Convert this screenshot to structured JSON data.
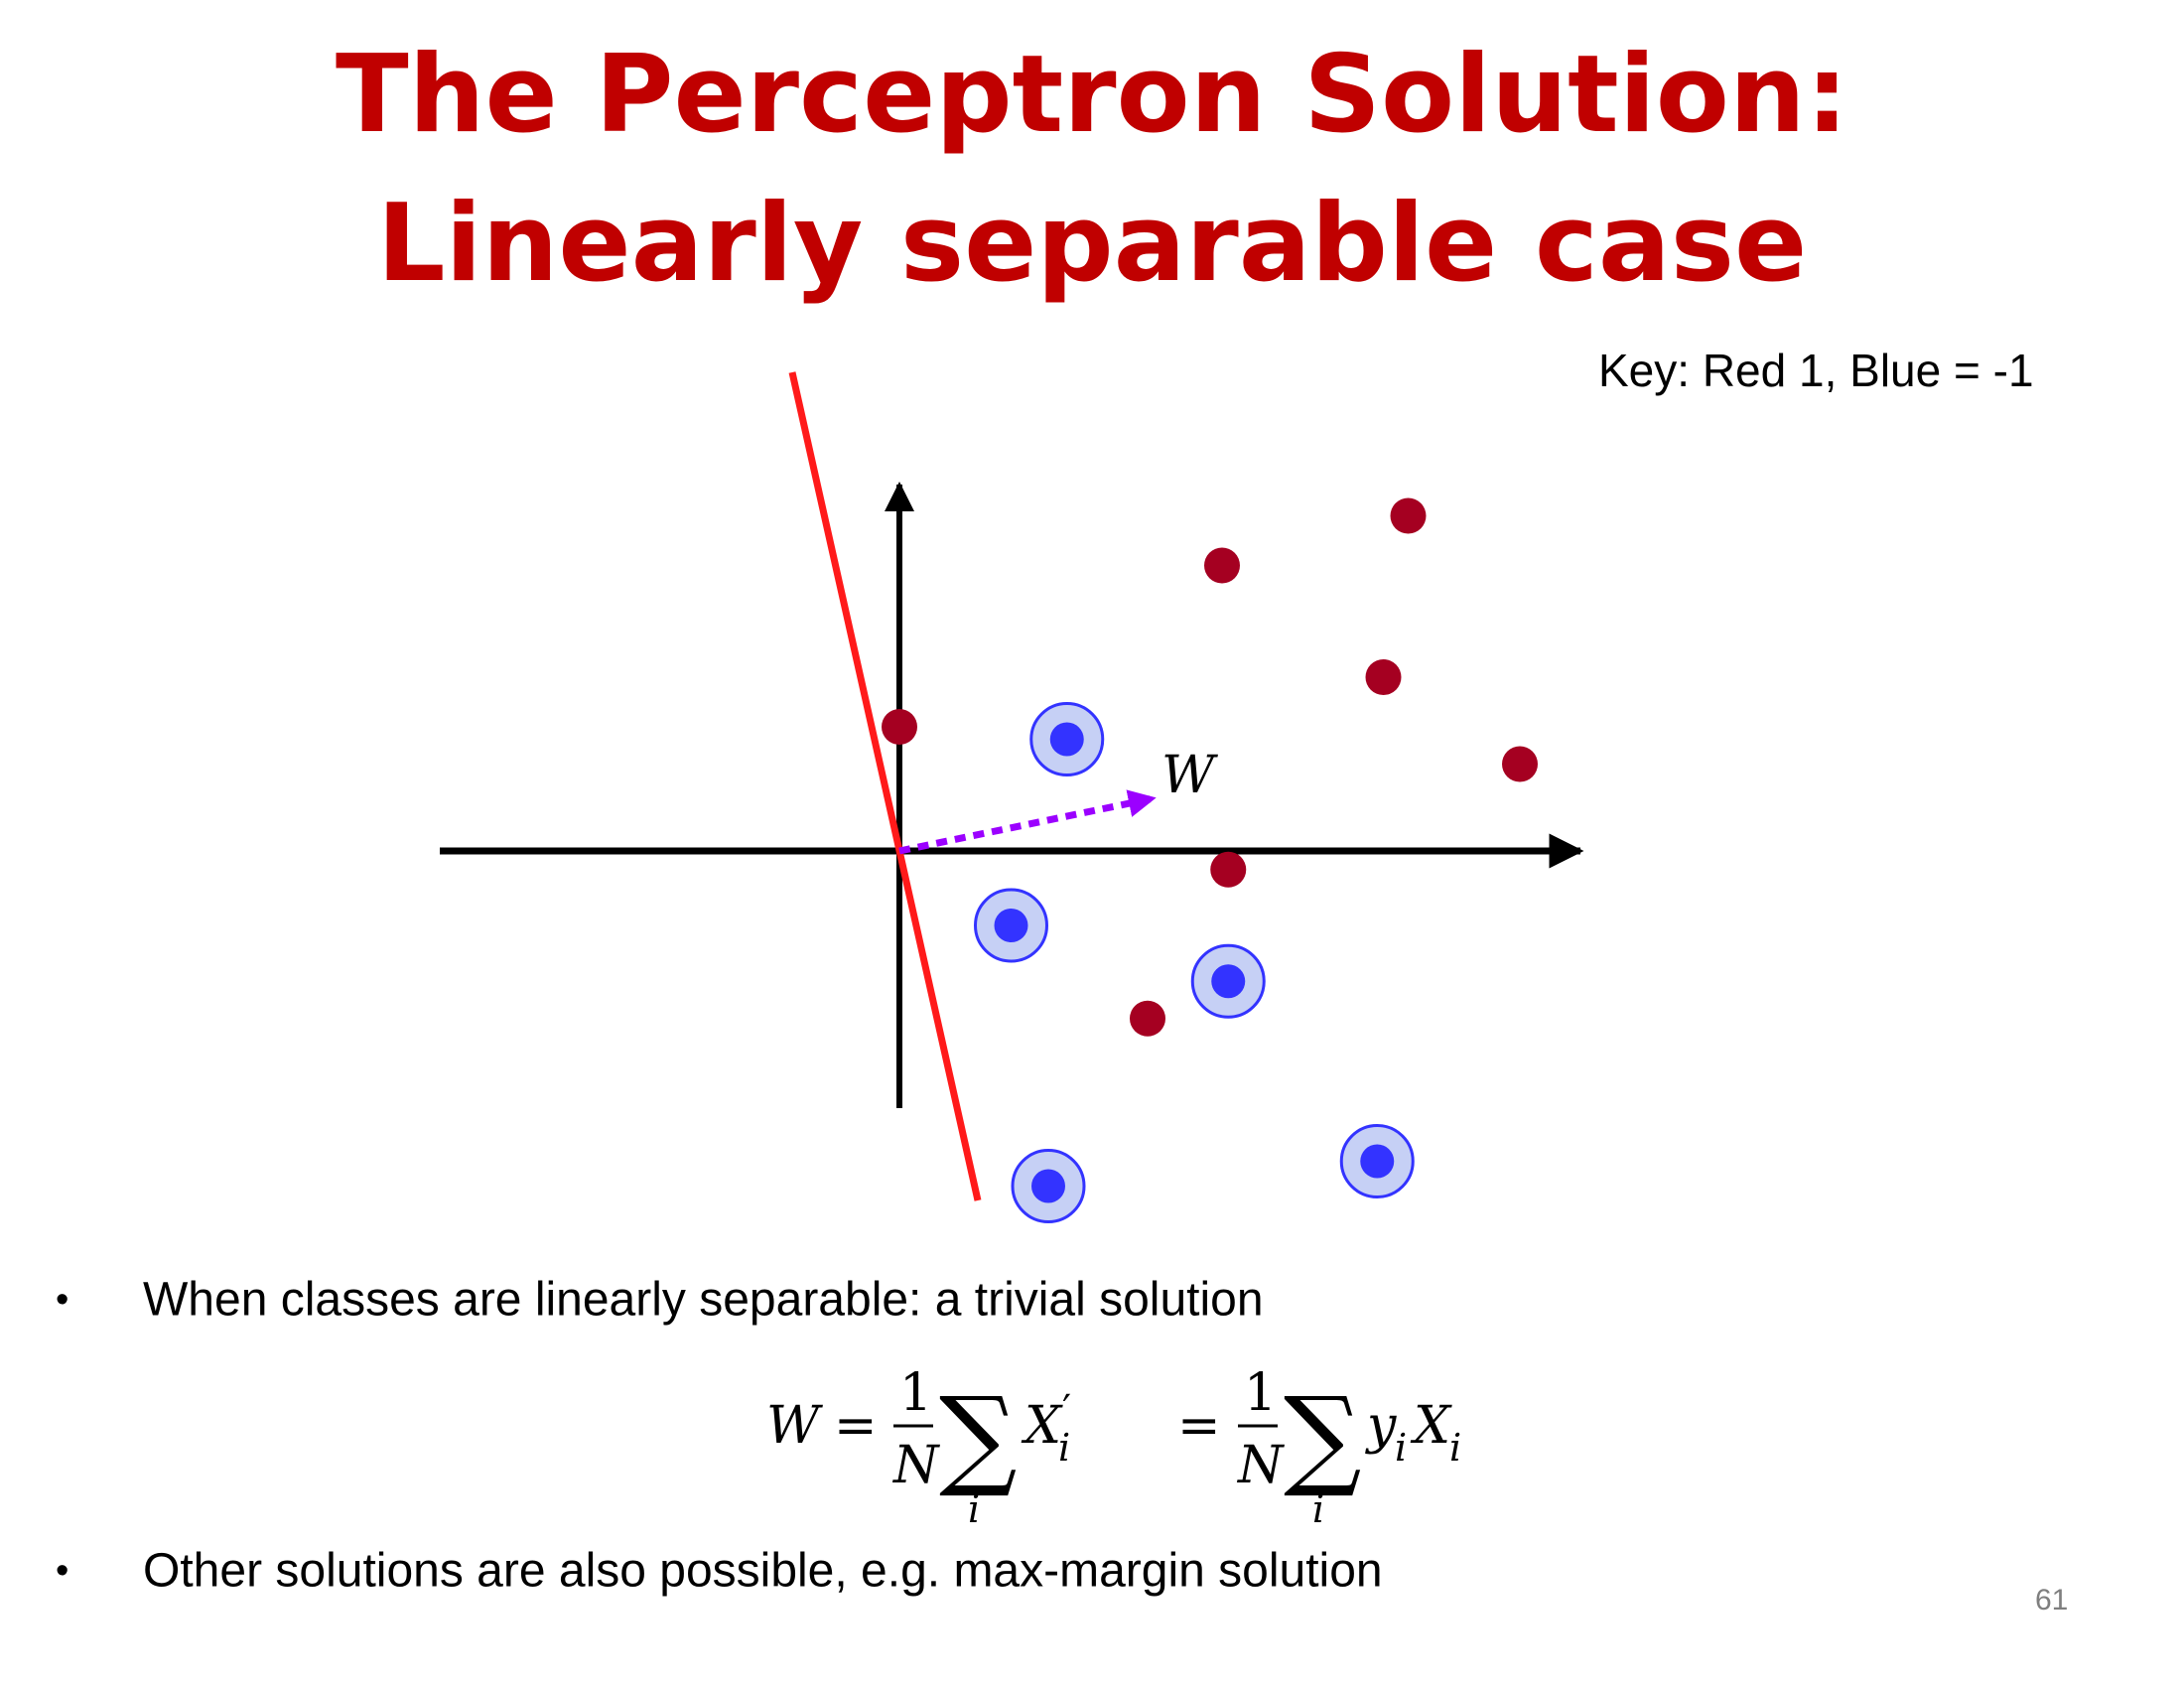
{
  "slide": {
    "title_line1": "The Perceptron Solution:",
    "title_line2": "Linearly separable case",
    "key": "Key:  Red 1, Blue = -1",
    "page_number": "61"
  },
  "diagram": {
    "vector_label": "W",
    "colors": {
      "red_class": "#a50021",
      "blue_class": "#3333ff",
      "blue_halo": "#c6d0f5",
      "separator": "#ff1a1a",
      "vector": "#9b00ff",
      "axes": "#000000"
    },
    "red_points": [
      {
        "x": 0,
        "y": 1
      },
      {
        "x": 2.6,
        "y": 2.3
      },
      {
        "x": 4.1,
        "y": 2.7
      },
      {
        "x": 3.9,
        "y": 1.4
      },
      {
        "x": 5.0,
        "y": 0.7
      },
      {
        "x": 2.65,
        "y": -0.15
      },
      {
        "x": 2.0,
        "y": -1.35
      }
    ],
    "blue_points": [
      {
        "x": 1.35,
        "y": 0.9
      },
      {
        "x": 0.9,
        "y": -0.6
      },
      {
        "x": 2.65,
        "y": -1.05
      },
      {
        "x": 1.2,
        "y": -2.7
      },
      {
        "x": 3.85,
        "y": -2.5
      }
    ]
  },
  "bullets": [
    "When classes are linearly separable: a trivial solution",
    "Other solutions are also possible, e.g. max-margin solution"
  ],
  "equation": {
    "lhs": "W",
    "eq1": "=",
    "frac_num": "1",
    "frac_den": "N",
    "sum": "∑",
    "sum_index": "i",
    "term1_base": "X",
    "term1_prime": "′",
    "term1_sub": "i",
    "eq2": "=",
    "term2_y": "y",
    "term2_y_sub": "i",
    "term2_x": "X",
    "term2_x_sub": "i"
  }
}
